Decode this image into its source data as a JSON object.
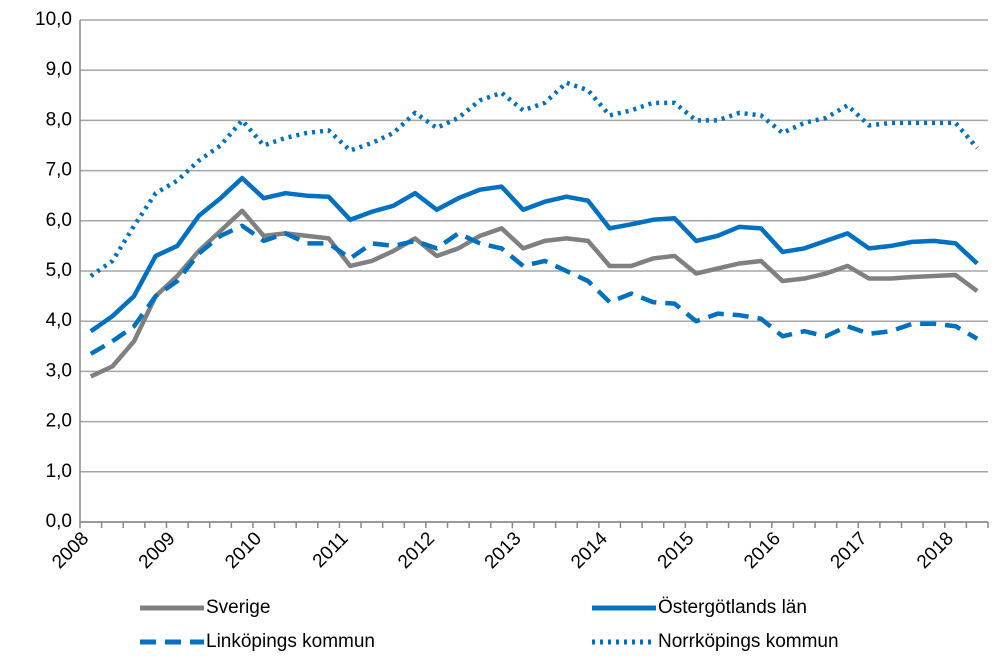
{
  "chart_data": {
    "type": "line",
    "categories": [
      "2008",
      null,
      null,
      null,
      "2009",
      null,
      null,
      null,
      "2010",
      null,
      null,
      null,
      "2011",
      null,
      null,
      null,
      "2012",
      null,
      null,
      null,
      "2013",
      null,
      null,
      null,
      "2014",
      null,
      null,
      null,
      "2015",
      null,
      null,
      null,
      "2016",
      null,
      null,
      null,
      "2017",
      null,
      null,
      null,
      "2018",
      null
    ],
    "series": [
      {
        "name": "Sverige",
        "color": "#808080",
        "dash": "solid",
        "values": [
          2.9,
          3.1,
          3.6,
          4.5,
          4.9,
          5.4,
          5.8,
          6.2,
          5.7,
          5.75,
          5.7,
          5.65,
          5.1,
          5.2,
          5.4,
          5.65,
          5.3,
          5.45,
          5.7,
          5.85,
          5.45,
          5.6,
          5.65,
          5.6,
          5.1,
          5.1,
          5.25,
          5.3,
          4.95,
          5.05,
          5.15,
          5.2,
          4.8,
          4.85,
          4.95,
          5.1,
          4.85,
          4.85,
          4.88,
          4.9,
          4.92,
          4.6
        ]
      },
      {
        "name": "Östergötlands län",
        "color": "#0070c0",
        "dash": "solid",
        "values": [
          3.8,
          4.1,
          4.5,
          5.3,
          5.5,
          6.1,
          6.45,
          6.85,
          6.45,
          6.55,
          6.5,
          6.48,
          6.02,
          6.18,
          6.3,
          6.55,
          6.22,
          6.45,
          6.62,
          6.68,
          6.22,
          6.38,
          6.48,
          6.4,
          5.85,
          5.93,
          6.02,
          6.05,
          5.6,
          5.7,
          5.88,
          5.85,
          5.38,
          5.45,
          5.6,
          5.75,
          5.45,
          5.5,
          5.58,
          5.6,
          5.55,
          5.15
        ]
      },
      {
        "name": "Linköpings kommun",
        "color": "#0070c0",
        "dash": "dashed",
        "values": [
          3.35,
          3.6,
          3.9,
          4.5,
          4.8,
          5.35,
          5.7,
          5.9,
          5.6,
          5.75,
          5.55,
          5.55,
          5.25,
          5.55,
          5.5,
          5.6,
          5.45,
          5.75,
          5.55,
          5.45,
          5.1,
          5.2,
          5.0,
          4.8,
          4.38,
          4.55,
          4.38,
          4.35,
          4.0,
          4.15,
          4.12,
          4.05,
          3.7,
          3.8,
          3.7,
          3.9,
          3.75,
          3.8,
          3.95,
          3.95,
          3.9,
          3.65
        ]
      },
      {
        "name": "Norrköpings kommun",
        "color": "#0070c0",
        "dash": "dotted",
        "values": [
          4.9,
          5.2,
          5.9,
          6.55,
          6.8,
          7.2,
          7.5,
          8.0,
          7.5,
          7.65,
          7.75,
          7.8,
          7.4,
          7.55,
          7.75,
          8.15,
          7.85,
          8.05,
          8.4,
          8.55,
          8.2,
          8.35,
          8.75,
          8.6,
          8.1,
          8.2,
          8.35,
          8.35,
          8.0,
          8.0,
          8.15,
          8.1,
          7.75,
          7.95,
          8.05,
          8.3,
          7.9,
          7.95,
          7.95,
          7.95,
          7.95,
          7.45
        ]
      }
    ],
    "ylim": [
      0,
      10
    ],
    "yticks": [
      {
        "value": 0,
        "label": "0,0"
      },
      {
        "value": 1,
        "label": "1,0"
      },
      {
        "value": 2,
        "label": "2,0"
      },
      {
        "value": 3,
        "label": "3,0"
      },
      {
        "value": 4,
        "label": "4,0"
      },
      {
        "value": 5,
        "label": "5,0"
      },
      {
        "value": 6,
        "label": "6,0"
      },
      {
        "value": 7,
        "label": "7,0"
      },
      {
        "value": 8,
        "label": "8,0"
      },
      {
        "value": 9,
        "label": "9,0"
      },
      {
        "value": 10,
        "label": "10,0"
      }
    ],
    "grid": true,
    "legend": "bottom"
  }
}
